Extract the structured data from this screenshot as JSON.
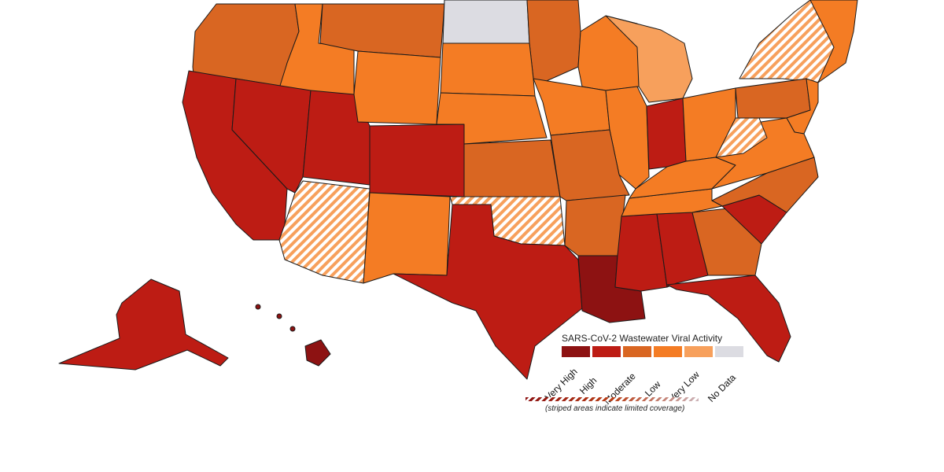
{
  "legend": {
    "title": "SARS-CoV-2 Wastewater Viral Activity",
    "levels": [
      {
        "label": "Very High",
        "color": "#8d1212"
      },
      {
        "label": "High",
        "color": "#bd1c14"
      },
      {
        "label": "Moderate",
        "color": "#d96622"
      },
      {
        "label": "Low",
        "color": "#f47c24"
      },
      {
        "label": "Very Low",
        "color": "#f7a05c"
      },
      {
        "label": "No Data",
        "color": "#dcdce2"
      }
    ],
    "note": "(striped areas indicate limited coverage)"
  },
  "regions": [
    {
      "name": "washington-oregon",
      "level": "Moderate"
    },
    {
      "name": "idaho",
      "level": "Low"
    },
    {
      "name": "montana",
      "level": "Moderate"
    },
    {
      "name": "north-dakota",
      "level": "No Data"
    },
    {
      "name": "minnesota",
      "level": "Moderate"
    },
    {
      "name": "wisconsin",
      "level": "Low"
    },
    {
      "name": "michigan",
      "level": "Very Low"
    },
    {
      "name": "new-york",
      "level": "Very Low",
      "limited_coverage": true
    },
    {
      "name": "california",
      "level": "High"
    },
    {
      "name": "nevada",
      "level": "High"
    },
    {
      "name": "utah",
      "level": "High"
    },
    {
      "name": "wyoming",
      "level": "Low"
    },
    {
      "name": "colorado",
      "level": "High"
    },
    {
      "name": "south-dakota",
      "level": "Low"
    },
    {
      "name": "nebraska",
      "level": "Low"
    },
    {
      "name": "kansas",
      "level": "Moderate"
    },
    {
      "name": "iowa",
      "level": "Low"
    },
    {
      "name": "illinois",
      "level": "Low"
    },
    {
      "name": "indiana",
      "level": "High"
    },
    {
      "name": "ohio",
      "level": "Low"
    },
    {
      "name": "pennsylvania",
      "level": "Moderate"
    },
    {
      "name": "arizona",
      "level": "Very Low",
      "limited_coverage": true
    },
    {
      "name": "new-mexico",
      "level": "Low"
    },
    {
      "name": "oklahoma",
      "level": "Very Low",
      "limited_coverage": true
    },
    {
      "name": "texas",
      "level": "High"
    },
    {
      "name": "missouri",
      "level": "Moderate"
    },
    {
      "name": "arkansas",
      "level": "Moderate"
    },
    {
      "name": "louisiana",
      "level": "Very High"
    },
    {
      "name": "mississippi",
      "level": "High"
    },
    {
      "name": "alabama",
      "level": "High"
    },
    {
      "name": "georgia",
      "level": "Moderate"
    },
    {
      "name": "florida",
      "level": "High"
    },
    {
      "name": "south-carolina",
      "level": "High"
    },
    {
      "name": "north-carolina",
      "level": "Moderate"
    },
    {
      "name": "tennessee",
      "level": "Low"
    },
    {
      "name": "kentucky",
      "level": "Low"
    },
    {
      "name": "virginia",
      "level": "Low"
    },
    {
      "name": "west-virginia",
      "level": "Very Low",
      "limited_coverage": true
    },
    {
      "name": "alaska",
      "level": "High"
    },
    {
      "name": "hawaii",
      "level": "Very High"
    }
  ]
}
